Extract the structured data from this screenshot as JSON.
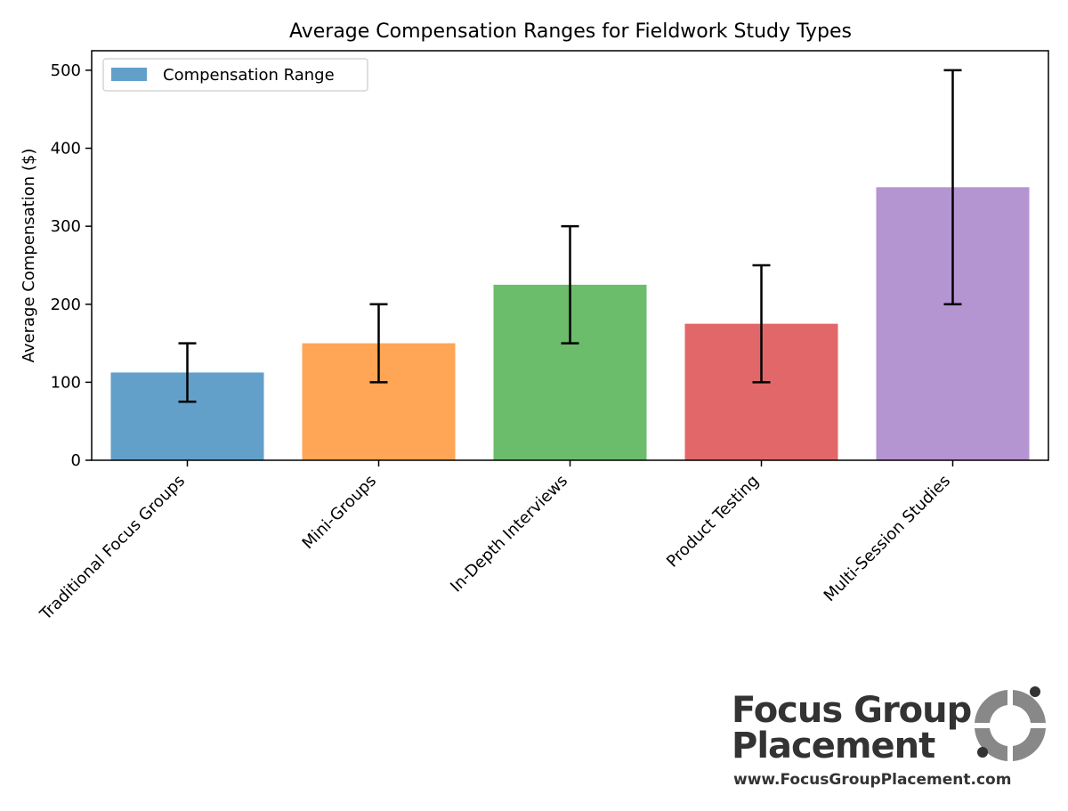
{
  "chart_data": {
    "type": "bar",
    "title": "Average Compensation Ranges for Fieldwork Study Types",
    "ylabel": "Average Compensation ($)",
    "xlabel": "",
    "categories": [
      "Traditional Focus Groups",
      "Mini-Groups",
      "In-Depth Interviews",
      "Product Testing",
      "Multi-Session Studies"
    ],
    "values": [
      112.5,
      150,
      225,
      175,
      350
    ],
    "ranges": [
      [
        75,
        150
      ],
      [
        100,
        200
      ],
      [
        150,
        300
      ],
      [
        100,
        250
      ],
      [
        200,
        500
      ]
    ],
    "colors": [
      "#1f77b4",
      "#ff7f0e",
      "#2ca02c",
      "#d62728",
      "#9467bd"
    ],
    "bar_alpha": 0.7,
    "ylim": [
      0,
      525
    ],
    "yticks": [
      0,
      100,
      200,
      300,
      400,
      500
    ],
    "legend": {
      "label": "Compensation Range",
      "placement": "top-left"
    },
    "grid": false
  },
  "logo": {
    "line1": "Focus Group",
    "line2": "Placement",
    "url": "www.FocusGroupPlacement.com"
  }
}
